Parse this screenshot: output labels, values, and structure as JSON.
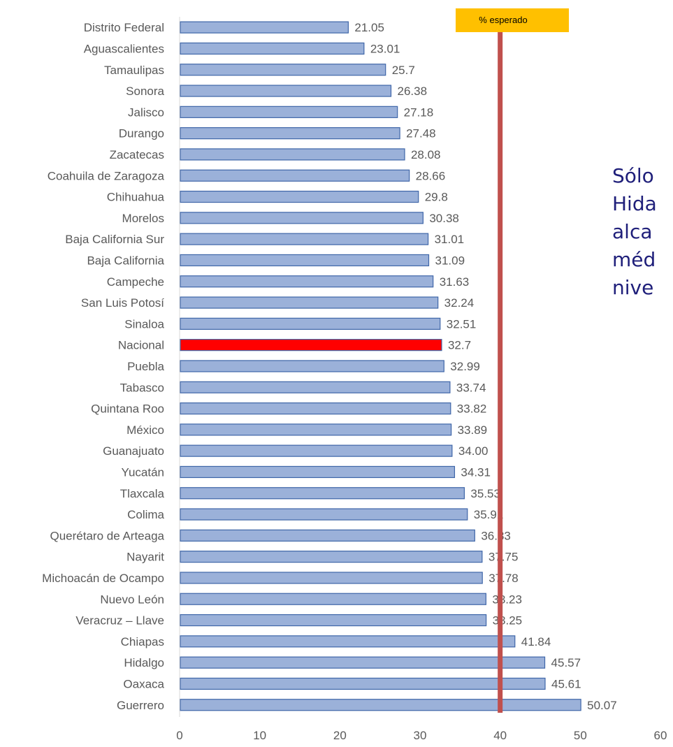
{
  "chart_data": {
    "type": "bar",
    "orientation": "horizontal",
    "categories": [
      "Distrito Federal",
      "Aguascalientes",
      "Tamaulipas",
      "Sonora",
      "Jalisco",
      "Durango",
      "Zacatecas",
      "Coahuila de Zaragoza",
      "Chihuahua",
      "Morelos",
      "Baja California Sur",
      "Baja California",
      "Campeche",
      "San Luis Potosí",
      "Sinaloa",
      "Nacional",
      "Puebla",
      "Tabasco",
      "Quintana Roo",
      "México",
      "Guanajuato",
      "Yucatán",
      "Tlaxcala",
      "Colima",
      "Querétaro de Arteaga",
      "Nayarit",
      "Michoacán de Ocampo",
      "Nuevo León",
      "Veracruz – Llave",
      "Chiapas",
      "Hidalgo",
      "Oaxaca",
      "Guerrero"
    ],
    "values": [
      21.05,
      23.01,
      25.7,
      26.38,
      27.18,
      27.48,
      28.08,
      28.66,
      29.8,
      30.38,
      31.01,
      31.09,
      31.63,
      32.24,
      32.51,
      32.7,
      32.99,
      33.74,
      33.82,
      33.89,
      34.0,
      34.31,
      35.53,
      35.91,
      36.83,
      37.75,
      37.78,
      38.23,
      38.25,
      41.84,
      45.57,
      45.61,
      50.07
    ],
    "value_labels": [
      "21.05",
      "23.01",
      "25.7",
      "26.38",
      "27.18",
      "27.48",
      "28.08",
      "28.66",
      "29.8",
      "30.38",
      "31.01",
      "31.09",
      "31.63",
      "32.24",
      "32.51",
      "32.7",
      "32.99",
      "33.74",
      "33.82",
      "33.89",
      "34.00",
      "34.31",
      "35.53",
      "35.91",
      "36.83",
      "37.75",
      "37.78",
      "38.23",
      "38.25",
      "41.84",
      "45.57",
      "45.61",
      "50.07"
    ],
    "highlight_category": "Nacional",
    "xlim": [
      0,
      60
    ],
    "x_ticks": [
      0,
      10,
      20,
      30,
      40,
      50,
      60
    ],
    "reference_line": {
      "value": 40,
      "label": "% esperado"
    },
    "grid": false,
    "colors": {
      "bar": "#9bb1d9",
      "bar_stroke": "#3f66a8",
      "highlight": "#ff0000",
      "reference_line": "#c0504d",
      "reference_label_bg": "#ffc000",
      "text": "#595959"
    }
  },
  "side_text": [
    "Sólo",
    "Hida",
    "alca",
    "méd",
    "nive"
  ]
}
